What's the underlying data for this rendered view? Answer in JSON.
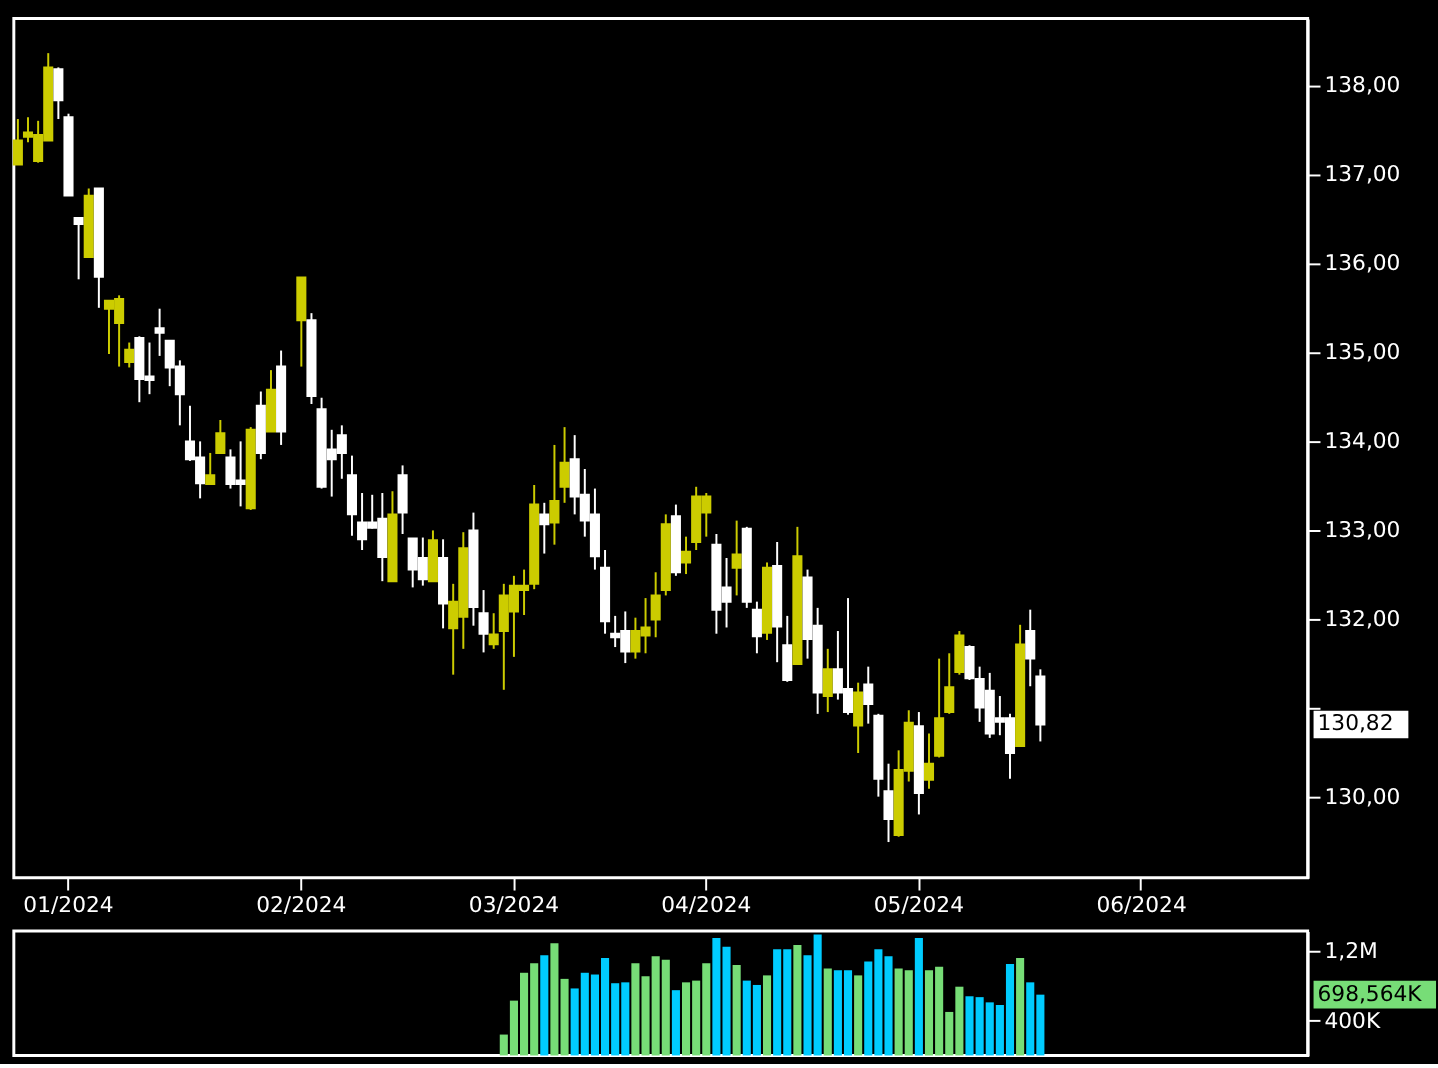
{
  "chart_data": [
    {
      "type": "candlestick",
      "categories": [
        null,
        null,
        null,
        null,
        null,
        "01/2024",
        null,
        null,
        null,
        null,
        null,
        null,
        null,
        null,
        null,
        null,
        null,
        null,
        null,
        null,
        null,
        null,
        null,
        null,
        null,
        null,
        null,
        null,
        "02/2024",
        null,
        null,
        null,
        null,
        null,
        null,
        null,
        null,
        null,
        null,
        null,
        null,
        null,
        null,
        null,
        null,
        null,
        null,
        null,
        null,
        "03/2024",
        null,
        null,
        null,
        null,
        null,
        null,
        null,
        null,
        null,
        null,
        null,
        null,
        null,
        null,
        null,
        null,
        null,
        null,
        "04/2024",
        null,
        null,
        null,
        null,
        null,
        null,
        null,
        null,
        null,
        null,
        null,
        null,
        null,
        null,
        null,
        null,
        null,
        null,
        null,
        null,
        "05/2024",
        null,
        null,
        null,
        null,
        null,
        null,
        null,
        null,
        null,
        null,
        null,
        null,
        null,
        null,
        null,
        null,
        null,
        null,
        null,
        null,
        null,
        "06/2024",
        null,
        null,
        null,
        null,
        null,
        null,
        null,
        null,
        null,
        null,
        null,
        null,
        null,
        null,
        null,
        null
      ],
      "ohlc": [
        [
          137.11,
          137.62,
          137.11,
          137.38
        ],
        [
          137.42,
          137.64,
          137.36,
          137.47
        ],
        [
          137.15,
          137.6,
          137.13,
          137.44
        ],
        [
          137.38,
          138.36,
          137.38,
          138.2
        ],
        [
          138.18,
          138.2,
          137.62,
          137.83
        ],
        [
          137.64,
          137.68,
          136.76,
          136.76
        ],
        [
          136.51,
          136.51,
          135.82,
          136.44
        ],
        [
          136.07,
          136.84,
          136.07,
          136.76
        ],
        [
          136.84,
          136.84,
          135.5,
          135.85
        ],
        [
          135.49,
          135.58,
          134.98,
          135.58
        ],
        [
          135.33,
          135.64,
          134.84,
          135.6
        ],
        [
          134.89,
          135.11,
          134.83,
          135.03
        ],
        [
          135.16,
          135.18,
          134.44,
          134.7
        ],
        [
          134.73,
          135.11,
          134.53,
          134.69
        ],
        [
          135.27,
          135.49,
          134.96,
          135.22
        ],
        [
          135.13,
          135.13,
          134.62,
          134.83
        ],
        [
          134.84,
          134.91,
          134.18,
          134.53
        ],
        [
          134.0,
          134.4,
          133.78,
          133.8
        ],
        [
          133.82,
          134.0,
          133.36,
          133.53
        ],
        [
          133.52,
          133.87,
          133.52,
          133.62
        ],
        [
          133.87,
          134.24,
          133.87,
          134.09
        ],
        [
          133.82,
          133.91,
          133.47,
          133.52
        ],
        [
          133.56,
          134.0,
          133.27,
          133.52
        ],
        [
          133.25,
          134.16,
          133.23,
          134.13
        ],
        [
          134.4,
          134.56,
          133.8,
          133.87
        ],
        [
          134.11,
          134.8,
          134.11,
          134.58
        ],
        [
          134.84,
          135.02,
          133.96,
          134.11
        ],
        null,
        [
          135.36,
          135.84,
          134.84,
          135.84
        ],
        [
          135.36,
          135.44,
          134.42,
          134.51
        ],
        [
          134.36,
          134.49,
          133.47,
          133.49
        ],
        [
          133.91,
          134.13,
          133.38,
          133.8
        ],
        [
          134.07,
          134.18,
          133.58,
          133.87
        ],
        [
          133.62,
          133.84,
          132.94,
          133.18
        ],
        [
          133.09,
          133.42,
          132.78,
          132.9
        ],
        [
          133.09,
          133.4,
          133.02,
          133.03
        ],
        [
          133.13,
          133.42,
          132.43,
          132.7
        ],
        [
          132.43,
          133.44,
          132.43,
          133.18
        ],
        [
          133.62,
          133.73,
          132.96,
          133.2
        ],
        [
          132.91,
          132.91,
          132.36,
          132.56
        ],
        [
          132.69,
          132.92,
          132.38,
          132.45
        ],
        [
          132.43,
          133.0,
          132.43,
          132.89
        ],
        [
          132.69,
          132.9,
          131.9,
          132.18
        ],
        [
          131.9,
          132.4,
          131.38,
          132.2
        ],
        [
          132.03,
          132.98,
          131.67,
          132.8
        ],
        [
          133.0,
          133.2,
          131.93,
          132.14
        ],
        [
          132.07,
          132.33,
          131.63,
          131.84
        ],
        [
          131.72,
          132.07,
          131.67,
          131.83
        ],
        [
          131.87,
          132.4,
          131.21,
          132.27
        ],
        [
          132.09,
          132.49,
          131.58,
          132.38
        ],
        [
          132.33,
          132.56,
          132.05,
          132.38
        ],
        [
          132.4,
          133.51,
          132.34,
          133.29
        ],
        [
          133.18,
          133.31,
          132.74,
          133.07
        ],
        [
          133.09,
          133.96,
          132.84,
          133.33
        ],
        [
          133.49,
          134.16,
          133.31,
          133.76
        ],
        [
          133.8,
          134.07,
          133.18,
          133.38
        ],
        [
          133.4,
          133.69,
          132.93,
          133.11
        ],
        [
          133.18,
          133.47,
          132.56,
          132.71
        ],
        [
          132.58,
          132.78,
          131.84,
          131.98
        ],
        [
          131.84,
          132.04,
          131.69,
          131.8
        ],
        [
          131.87,
          132.09,
          131.51,
          131.64
        ],
        [
          131.64,
          132.02,
          131.56,
          131.87
        ],
        [
          131.82,
          132.24,
          131.62,
          131.91
        ],
        [
          132.0,
          132.53,
          131.8,
          132.27
        ],
        [
          132.33,
          133.18,
          132.27,
          133.07
        ],
        [
          133.16,
          133.29,
          132.49,
          132.53
        ],
        [
          132.64,
          132.93,
          132.51,
          132.76
        ],
        [
          132.87,
          133.49,
          132.78,
          133.38
        ],
        [
          133.2,
          133.42,
          132.93,
          133.38
        ],
        [
          132.84,
          132.96,
          131.84,
          132.11
        ],
        [
          132.36,
          132.69,
          131.91,
          132.2
        ],
        [
          132.58,
          133.11,
          132.27,
          132.73
        ],
        [
          133.02,
          133.04,
          132.13,
          132.2
        ],
        [
          132.11,
          132.2,
          131.62,
          131.81
        ],
        [
          131.85,
          132.64,
          131.77,
          132.58
        ],
        [
          132.6,
          132.87,
          131.52,
          131.92
        ],
        [
          131.71,
          132.04,
          131.3,
          131.32
        ],
        [
          131.5,
          133.04,
          131.5,
          132.71
        ],
        [
          132.47,
          132.56,
          131.56,
          131.78
        ],
        [
          131.93,
          132.13,
          130.94,
          131.18
        ],
        [
          131.14,
          131.67,
          130.96,
          131.44
        ],
        [
          131.44,
          131.87,
          131.1,
          131.18
        ],
        [
          131.22,
          132.24,
          130.93,
          130.96
        ],
        [
          130.81,
          131.29,
          130.5,
          131.18
        ],
        [
          131.27,
          131.47,
          130.83,
          131.05
        ],
        [
          130.92,
          130.94,
          130.01,
          130.21
        ],
        [
          130.07,
          130.38,
          129.5,
          129.76
        ],
        [
          129.58,
          130.53,
          129.56,
          130.31
        ],
        [
          130.3,
          130.98,
          130.18,
          130.84
        ],
        [
          130.8,
          130.96,
          129.81,
          130.05
        ],
        [
          130.2,
          130.72,
          130.1,
          130.38
        ],
        [
          130.47,
          131.56,
          130.45,
          130.89
        ],
        [
          130.96,
          131.62,
          130.94,
          131.24
        ],
        [
          131.41,
          131.87,
          131.38,
          131.82
        ],
        [
          131.69,
          131.71,
          131.32,
          131.34
        ],
        [
          131.33,
          131.47,
          130.85,
          131.01
        ],
        [
          131.2,
          131.4,
          130.67,
          130.72
        ],
        [
          130.89,
          131.14,
          130.7,
          130.85
        ],
        [
          130.89,
          130.94,
          130.21,
          130.5
        ],
        [
          130.58,
          131.94,
          130.58,
          131.72
        ],
        [
          131.87,
          132.11,
          131.25,
          131.56
        ],
        [
          131.36,
          131.44,
          130.63,
          130.82
        ],
        null,
        null,
        null,
        null,
        null,
        null,
        null,
        null,
        null,
        null,
        null,
        null,
        null,
        null,
        null,
        null,
        null,
        null,
        null,
        null,
        null,
        null,
        null,
        null,
        null,
        null
      ],
      "colors": [
        "#cccc00",
        "#cccc00",
        "#cccc00",
        "#cccc00",
        "#ffffff",
        "#ffffff",
        "#ffffff",
        "#cccc00",
        "#ffffff",
        "#cccc00",
        "#cccc00",
        "#cccc00",
        "#ffffff",
        "#ffffff",
        "#ffffff",
        "#ffffff",
        "#ffffff",
        "#ffffff",
        "#ffffff",
        "#cccc00",
        "#cccc00",
        "#ffffff",
        "#ffffff",
        "#cccc00",
        "#ffffff",
        "#cccc00",
        "#ffffff",
        null,
        "#cccc00",
        "#ffffff",
        "#ffffff",
        "#ffffff",
        "#ffffff",
        "#ffffff",
        "#ffffff",
        "#ffffff",
        "#ffffff",
        "#cccc00",
        "#ffffff",
        "#ffffff",
        "#ffffff",
        "#cccc00",
        "#ffffff",
        "#cccc00",
        "#cccc00",
        "#ffffff",
        "#ffffff",
        "#cccc00",
        "#cccc00",
        "#cccc00",
        "#cccc00",
        "#cccc00",
        "#ffffff",
        "#cccc00",
        "#cccc00",
        "#ffffff",
        "#ffffff",
        "#ffffff",
        "#ffffff",
        "#ffffff",
        "#ffffff",
        "#cccc00",
        "#cccc00",
        "#cccc00",
        "#cccc00",
        "#ffffff",
        "#cccc00",
        "#cccc00",
        "#cccc00",
        "#ffffff",
        "#ffffff",
        "#cccc00",
        "#ffffff",
        "#ffffff",
        "#cccc00",
        "#ffffff",
        "#ffffff",
        "#cccc00",
        "#ffffff",
        "#ffffff",
        "#cccc00",
        "#ffffff",
        "#ffffff",
        "#cccc00",
        "#ffffff",
        "#ffffff",
        "#ffffff",
        "#cccc00",
        "#cccc00",
        "#ffffff",
        "#cccc00",
        "#cccc00",
        "#cccc00",
        "#cccc00",
        "#ffffff",
        "#ffffff",
        "#ffffff",
        "#ffffff",
        "#ffffff",
        "#cccc00",
        "#ffffff",
        "#ffffff",
        null,
        null,
        null,
        null,
        null,
        null,
        null,
        null,
        null,
        null,
        null,
        null,
        null,
        null,
        null,
        null,
        null,
        null,
        null,
        null,
        null,
        null,
        null,
        null,
        null,
        null
      ],
      "ylim": [
        129.1,
        138.75
      ],
      "yticks": [
        {
          "value": 130,
          "label": "130,00"
        },
        {
          "value": 131,
          "label": null
        },
        {
          "value": 132,
          "label": "132,00"
        },
        {
          "value": 133,
          "label": "133,00"
        },
        {
          "value": 134,
          "label": "134,00"
        },
        {
          "value": 135,
          "label": "135,00"
        },
        {
          "value": 136,
          "label": "136,00"
        },
        {
          "value": 137,
          "label": "137,00"
        },
        {
          "value": 138,
          "label": "138,00"
        }
      ],
      "annotations": [
        "130,82"
      ]
    },
    {
      "type": "bar",
      "categories": [
        null,
        null,
        null,
        null,
        null,
        null,
        null,
        null,
        null,
        null,
        null,
        null,
        null,
        null,
        null,
        null,
        null,
        null,
        null,
        null,
        null,
        null,
        null,
        null,
        null,
        null,
        null,
        null,
        null,
        null,
        null,
        null,
        null,
        null,
        null,
        null,
        null,
        null,
        null,
        null,
        null,
        null,
        null,
        null,
        null,
        null,
        null,
        null,
        null,
        null,
        null,
        null,
        null,
        null,
        null,
        null,
        null,
        null,
        null,
        null,
        null,
        null,
        null,
        null,
        null,
        null,
        null,
        null,
        null,
        null,
        null,
        null,
        null,
        null,
        null,
        null,
        null,
        null,
        null,
        null,
        null,
        null,
        null,
        null,
        null,
        null,
        null,
        null,
        null,
        null,
        null,
        null,
        null,
        null,
        null,
        null,
        null,
        null,
        null,
        null,
        null,
        null,
        null,
        null,
        null,
        null,
        null,
        null,
        null,
        null,
        null,
        null,
        null,
        null,
        null,
        null,
        null,
        null,
        null,
        null,
        null,
        null,
        null,
        null,
        null,
        null,
        null,
        null
      ],
      "values": [
        null,
        null,
        null,
        null,
        null,
        null,
        null,
        null,
        null,
        null,
        null,
        null,
        null,
        null,
        null,
        null,
        null,
        null,
        null,
        null,
        null,
        null,
        null,
        null,
        null,
        null,
        null,
        null,
        null,
        null,
        null,
        null,
        null,
        null,
        null,
        null,
        null,
        null,
        null,
        null,
        null,
        null,
        null,
        null,
        null,
        null,
        null,
        null,
        240000,
        630000,
        950000,
        1060000,
        1150000,
        1290000,
        880000,
        770000,
        950000,
        930000,
        1120000,
        830000,
        840000,
        1060000,
        910000,
        1140000,
        1100000,
        750000,
        840000,
        860000,
        1060000,
        1350000,
        1250000,
        1040000,
        860000,
        810000,
        920000,
        1220000,
        1220000,
        1270000,
        1150000,
        1390000,
        1000000,
        980000,
        980000,
        920000,
        1080000,
        1220000,
        1140000,
        1000000,
        980000,
        1350000,
        980000,
        1020000,
        500000,
        790000,
        680000,
        670000,
        610000,
        580000,
        1050000,
        1120000,
        840000,
        698564,
        null,
        null,
        null,
        null,
        null,
        null,
        null,
        null,
        null,
        null,
        null,
        null,
        null,
        null,
        null,
        null,
        null,
        null,
        null,
        null,
        null,
        null,
        null,
        null,
        null,
        null
      ],
      "colors": [
        null,
        null,
        null,
        null,
        null,
        null,
        null,
        null,
        null,
        null,
        null,
        null,
        null,
        null,
        null,
        null,
        null,
        null,
        null,
        null,
        null,
        null,
        null,
        null,
        null,
        null,
        null,
        null,
        null,
        null,
        null,
        null,
        null,
        null,
        null,
        null,
        null,
        null,
        null,
        null,
        null,
        null,
        null,
        null,
        null,
        null,
        null,
        null,
        "#77dd77",
        "#77dd77",
        "#77dd77",
        "#77dd77",
        "#00ccff",
        "#77dd77",
        "#77dd77",
        "#00ccff",
        "#00ccff",
        "#00ccff",
        "#00ccff",
        "#00ccff",
        "#00ccff",
        "#77dd77",
        "#77dd77",
        "#77dd77",
        "#77dd77",
        "#00ccff",
        "#77dd77",
        "#77dd77",
        "#77dd77",
        "#00ccff",
        "#00ccff",
        "#77dd77",
        "#00ccff",
        "#00ccff",
        "#77dd77",
        "#00ccff",
        "#00ccff",
        "#77dd77",
        "#00ccff",
        "#00ccff",
        "#77dd77",
        "#00ccff",
        "#00ccff",
        "#77dd77",
        "#00ccff",
        "#00ccff",
        "#00ccff",
        "#77dd77",
        "#77dd77",
        "#00ccff",
        "#77dd77",
        "#77dd77",
        "#77dd77",
        "#77dd77",
        "#00ccff",
        "#00ccff",
        "#00ccff",
        "#00ccff",
        "#00ccff",
        "#77dd77",
        "#00ccff",
        "#00ccff",
        null,
        null,
        null,
        null,
        null,
        null,
        null,
        null,
        null,
        null,
        null,
        null,
        null,
        null,
        null,
        null,
        null,
        null,
        null,
        null,
        null,
        null,
        null,
        null,
        null,
        null
      ],
      "ylim": [
        0,
        1430000
      ],
      "yticks": [
        {
          "value": 400000,
          "label": "400K"
        },
        {
          "value": 1200000,
          "label": "1,2M"
        }
      ],
      "annotations": [
        "698,564K"
      ]
    }
  ]
}
